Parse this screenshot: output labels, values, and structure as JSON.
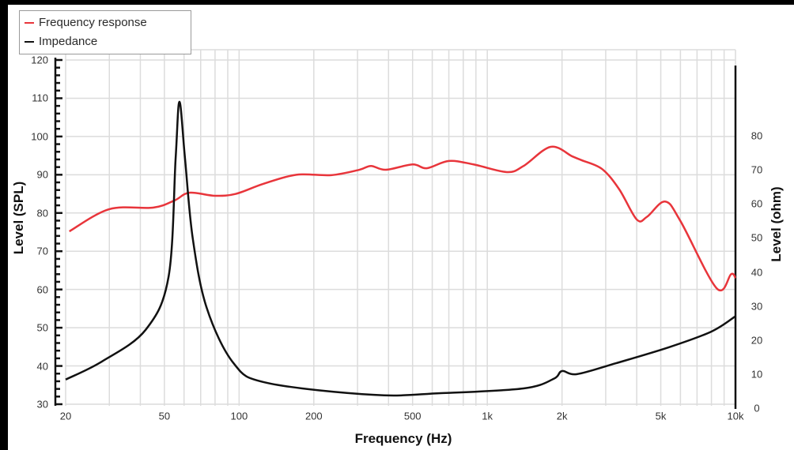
{
  "chart_data": {
    "type": "line",
    "title": "",
    "xlabel": "Frequency (Hz)",
    "ylabel": "Level (SPL)",
    "y2label": "Level (ohm)",
    "xscale": "log",
    "xlim": [
      20,
      10000
    ],
    "ylim": [
      30,
      120
    ],
    "y2lim": [
      0,
      80
    ],
    "grid": true,
    "legend_position": "top-left",
    "x_ticks": [
      {
        "value": 20,
        "label": "20"
      },
      {
        "value": 50,
        "label": "50"
      },
      {
        "value": 100,
        "label": "100"
      },
      {
        "value": 200,
        "label": "200"
      },
      {
        "value": 500,
        "label": "500"
      },
      {
        "value": 1000,
        "label": "1k"
      },
      {
        "value": 2000,
        "label": "2k"
      },
      {
        "value": 5000,
        "label": "5k"
      },
      {
        "value": 10000,
        "label": "10k"
      }
    ],
    "y_ticks": [
      30,
      40,
      50,
      60,
      70,
      80,
      90,
      100,
      110,
      120
    ],
    "y2_ticks": [
      0,
      10,
      20,
      30,
      40,
      50,
      60,
      70,
      80
    ],
    "series": [
      {
        "name": "Frequency response",
        "axis": "left",
        "color": "#e8353b",
        "x": [
          20.7,
          30,
          45,
          55,
          63,
          80,
          97,
          125,
          170,
          235,
          305,
          340,
          390,
          500,
          570,
          700,
          880,
          1200,
          1400,
          1800,
          2200,
          2400,
          2900,
          3400,
          4000,
          4400,
          5200,
          6000,
          8400,
          9600,
          10000
        ],
        "values": [
          75.2,
          81,
          81.4,
          83.3,
          85.3,
          84.5,
          85,
          87.6,
          90,
          89.9,
          91.3,
          92.3,
          91.3,
          92.7,
          91.7,
          93.6,
          92.7,
          90.7,
          92.3,
          97.3,
          94.8,
          93.8,
          91.5,
          86.2,
          78.3,
          79,
          83,
          77.9,
          60.3,
          64,
          63
        ]
      },
      {
        "name": "Impedance",
        "axis": "right",
        "color": "#111111",
        "x": [
          20,
          28,
          42,
          52,
          55.5,
          57.5,
          60.5,
          65,
          74,
          95,
          130,
          350,
          650,
          1400,
          1850,
          2000,
          2300,
          3300,
          5400,
          8000,
          10000
        ],
        "values": [
          8.4,
          13.7,
          23,
          38.7,
          73.5,
          90,
          73.5,
          50,
          29.5,
          13.2,
          7.4,
          3.9,
          4.4,
          5.8,
          8.6,
          10.9,
          10,
          13.2,
          17.9,
          22.5,
          27
        ]
      }
    ]
  },
  "legend": {
    "items": [
      {
        "label": "Frequency response",
        "color": "#e8353b"
      },
      {
        "label": "Impedance",
        "color": "#111111"
      }
    ]
  },
  "axes": {
    "x_title": "Frequency (Hz)",
    "y_left_title": "Level (SPL)",
    "y_right_title": "Level (ohm)"
  }
}
